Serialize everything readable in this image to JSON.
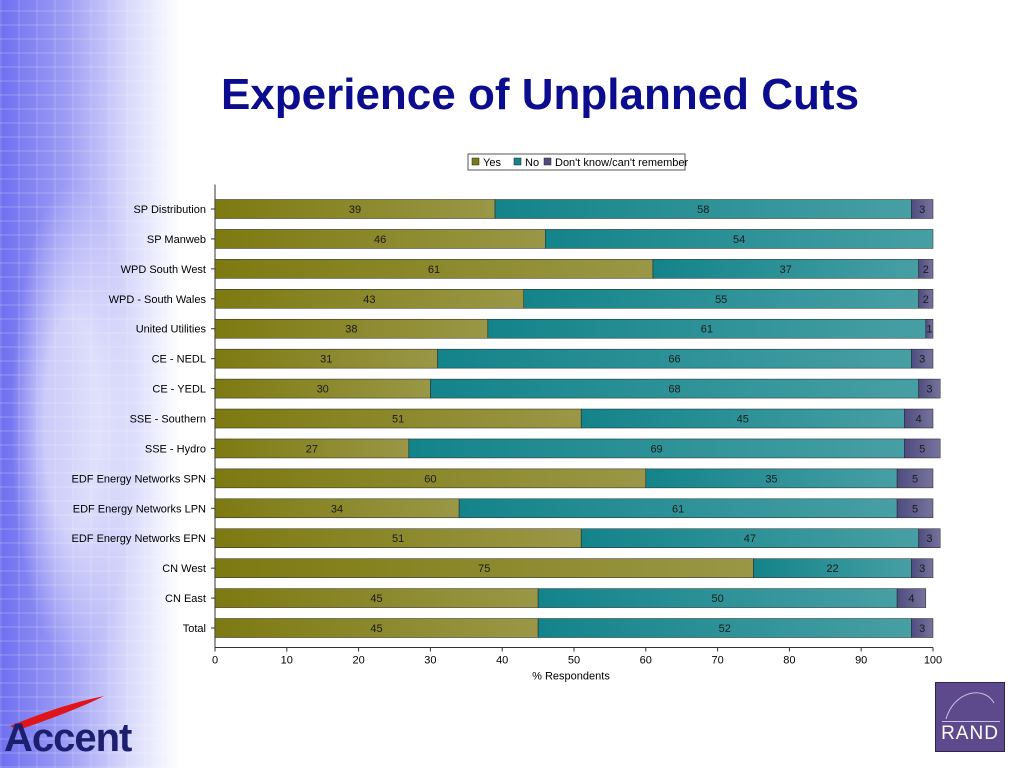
{
  "slide": {
    "title": "Experience of Unplanned Cuts"
  },
  "logos": {
    "accent": "Accent",
    "rand": "RAND"
  },
  "colors": {
    "yes": "#7d7a12",
    "no": "#13848a",
    "dk": "#4f4c80"
  },
  "chart_data": {
    "type": "bar",
    "orientation": "horizontal",
    "stacked": true,
    "categories": [
      "SP Distribution",
      "SP Manweb",
      "WPD South West",
      "WPD - South Wales",
      "United Utilities",
      "CE - NEDL",
      "CE - YEDL",
      "SSE - Southern",
      "SSE - Hydro",
      "EDF Energy Networks SPN",
      "EDF Energy Networks LPN",
      "EDF Energy Networks EPN",
      "CN West",
      "CN East",
      "Total"
    ],
    "series": [
      {
        "name": "Yes",
        "values": [
          39,
          46,
          61,
          43,
          38,
          31,
          30,
          51,
          27,
          60,
          34,
          51,
          75,
          45,
          45
        ]
      },
      {
        "name": "No",
        "values": [
          58,
          54,
          37,
          55,
          61,
          66,
          68,
          45,
          69,
          35,
          61,
          47,
          22,
          50,
          52
        ]
      },
      {
        "name": "Don't know/can't remember",
        "values": [
          3,
          null,
          2,
          2,
          1,
          3,
          3,
          4,
          5,
          5,
          5,
          3,
          3,
          4,
          3
        ]
      }
    ],
    "xlabel": "% Respondents",
    "xlim": [
      0,
      100
    ],
    "xticks": [
      "0",
      "10",
      "20",
      "30",
      "40",
      "50",
      "60",
      "70",
      "80",
      "90",
      "100"
    ],
    "legend": "top-center",
    "grid": false
  }
}
